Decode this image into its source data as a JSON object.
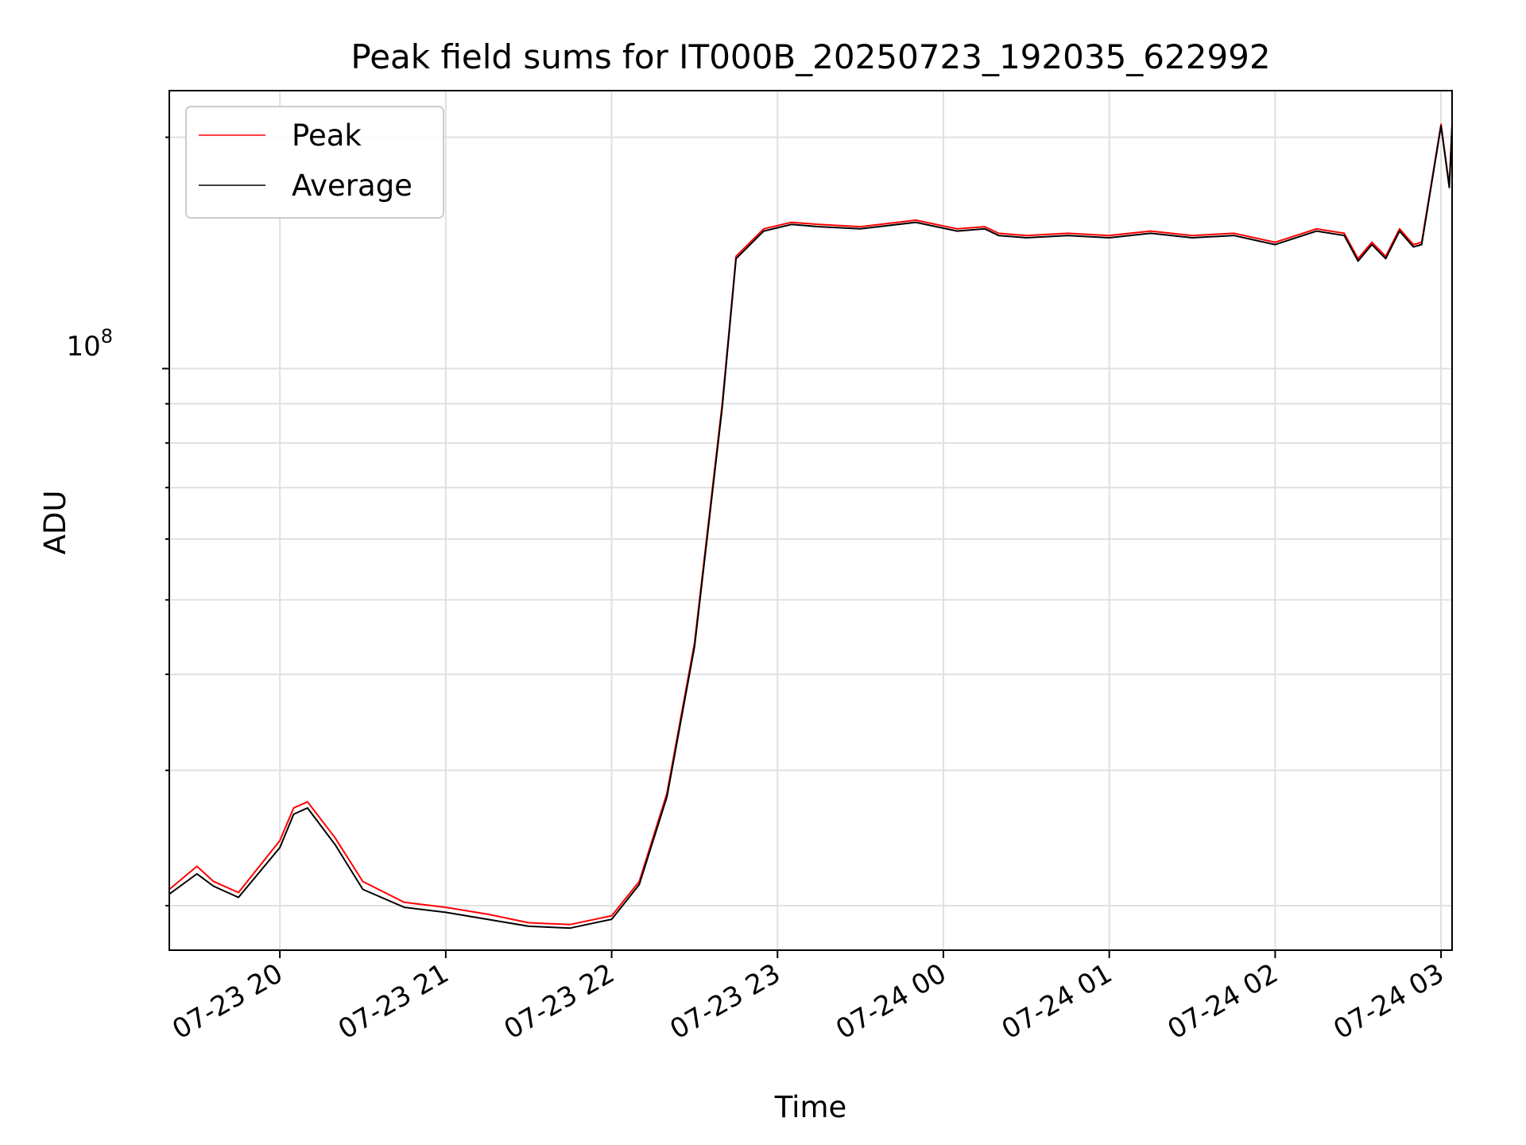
{
  "chart_data": {
    "type": "line",
    "title": "Peak field sums for IT000B_20250723_192035_622992",
    "xlabel": "Time",
    "ylabel": "ADU",
    "y_scale": "log",
    "ylim": [
      17500000,
      230000000
    ],
    "xlim": [
      "2025-07-23 19:20",
      "2025-07-24 03:04"
    ],
    "grid": true,
    "legend_position": "top-left",
    "x_ticks": [
      "07-23 20",
      "07-23 21",
      "07-23 22",
      "07-23 23",
      "07-24 00",
      "07-24 01",
      "07-24 02",
      "07-24 03"
    ],
    "y_major_tick": {
      "base": "10",
      "exponent": "8",
      "value": 100000000
    },
    "y_minor_tick_values": [
      20000000,
      30000000,
      40000000,
      50000000,
      60000000,
      70000000,
      80000000,
      90000000,
      200000000
    ],
    "colors": {
      "peak": "#ff0000",
      "average": "#000000",
      "grid": "#e0e0e0"
    },
    "series": [
      {
        "name": "Peak",
        "x": [
          "2025-07-23 19:20",
          "2025-07-23 19:30",
          "2025-07-23 19:36",
          "2025-07-23 19:45",
          "2025-07-23 20:00",
          "2025-07-23 20:05",
          "2025-07-23 20:10",
          "2025-07-23 20:20",
          "2025-07-23 20:30",
          "2025-07-23 20:45",
          "2025-07-23 21:00",
          "2025-07-23 21:15",
          "2025-07-23 21:30",
          "2025-07-23 21:45",
          "2025-07-23 22:00",
          "2025-07-23 22:10",
          "2025-07-23 22:20",
          "2025-07-23 22:30",
          "2025-07-23 22:40",
          "2025-07-23 22:45",
          "2025-07-23 22:55",
          "2025-07-23 23:05",
          "2025-07-23 23:15",
          "2025-07-23 23:30",
          "2025-07-23 23:50",
          "2025-07-24 00:05",
          "2025-07-24 00:15",
          "2025-07-24 00:20",
          "2025-07-24 00:30",
          "2025-07-24 00:45",
          "2025-07-24 01:00",
          "2025-07-24 01:15",
          "2025-07-24 01:30",
          "2025-07-24 01:45",
          "2025-07-24 02:00",
          "2025-07-24 02:15",
          "2025-07-24 02:25",
          "2025-07-24 02:30",
          "2025-07-24 02:35",
          "2025-07-24 02:40",
          "2025-07-24 02:45",
          "2025-07-24 02:50",
          "2025-07-24 02:53",
          "2025-07-24 03:00",
          "2025-07-24 03:03",
          "2025-07-24 03:04"
        ],
        "values": [
          21000000,
          22500000,
          21500000,
          20800000,
          24300000,
          26800000,
          27300000,
          24500000,
          21500000,
          20200000,
          19900000,
          19500000,
          19000000,
          18900000,
          19400000,
          21500000,
          28000000,
          44000000,
          90000000,
          140000000,
          152000000,
          155000000,
          154000000,
          153000000,
          156000000,
          152000000,
          153000000,
          150000000,
          149000000,
          150000000,
          149000000,
          151000000,
          149000000,
          150000000,
          146000000,
          152000000,
          150000000,
          139000000,
          146000000,
          140000000,
          152000000,
          145000000,
          146000000,
          208000000,
          173000000,
          208000000
        ]
      },
      {
        "name": "Average",
        "x": [
          "2025-07-23 19:20",
          "2025-07-23 19:30",
          "2025-07-23 19:36",
          "2025-07-23 19:45",
          "2025-07-23 20:00",
          "2025-07-23 20:05",
          "2025-07-23 20:10",
          "2025-07-23 20:20",
          "2025-07-23 20:30",
          "2025-07-23 20:45",
          "2025-07-23 21:00",
          "2025-07-23 21:15",
          "2025-07-23 21:30",
          "2025-07-23 21:45",
          "2025-07-23 22:00",
          "2025-07-23 22:10",
          "2025-07-23 22:20",
          "2025-07-23 22:30",
          "2025-07-23 22:40",
          "2025-07-23 22:45",
          "2025-07-23 22:55",
          "2025-07-23 23:05",
          "2025-07-23 23:15",
          "2025-07-23 23:30",
          "2025-07-23 23:50",
          "2025-07-24 00:05",
          "2025-07-24 00:15",
          "2025-07-24 00:20",
          "2025-07-24 00:30",
          "2025-07-24 00:45",
          "2025-07-24 01:00",
          "2025-07-24 01:15",
          "2025-07-24 01:30",
          "2025-07-24 01:45",
          "2025-07-24 02:00",
          "2025-07-24 02:15",
          "2025-07-24 02:25",
          "2025-07-24 02:30",
          "2025-07-24 02:35",
          "2025-07-24 02:40",
          "2025-07-24 02:45",
          "2025-07-24 02:50",
          "2025-07-24 02:53",
          "2025-07-24 03:00",
          "2025-07-24 03:03",
          "2025-07-24 03:04"
        ],
        "values": [
          20700000,
          22000000,
          21200000,
          20500000,
          23800000,
          26300000,
          26800000,
          24000000,
          21000000,
          19900000,
          19600000,
          19200000,
          18800000,
          18700000,
          19200000,
          21300000,
          27700000,
          43500000,
          89000000,
          139000000,
          151000000,
          154000000,
          153000000,
          152000000,
          155000000,
          151000000,
          152000000,
          149000000,
          148000000,
          149000000,
          148000000,
          150000000,
          148000000,
          149000000,
          145000000,
          151000000,
          149000000,
          138000000,
          145000000,
          139000000,
          151000000,
          144000000,
          145000000,
          207000000,
          172000000,
          207000000
        ]
      }
    ]
  }
}
